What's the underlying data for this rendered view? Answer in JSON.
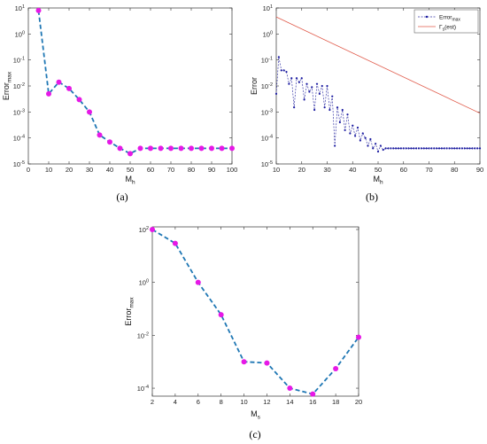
{
  "chart_data": [
    {
      "id": "a",
      "type": "line",
      "caption": "(a)",
      "xlabel_main": "M",
      "xlabel_sub": "h",
      "ylabel_main": "Error",
      "ylabel_sub": "max",
      "xlim": [
        0,
        100
      ],
      "xticks": [
        0,
        10,
        20,
        30,
        40,
        50,
        60,
        70,
        80,
        90,
        100
      ],
      "yscale": "log",
      "ylim_exp": [
        -5,
        1
      ],
      "ytick_exps": [
        -5,
        -4,
        -3,
        -2,
        -1,
        0,
        1
      ],
      "grid": false,
      "series": [
        {
          "line_color": "#1f77b4",
          "line_style": "dashed",
          "marker_color": "#e619e6",
          "x": [
            5,
            10,
            15,
            20,
            25,
            30,
            35,
            40,
            45,
            50,
            55,
            60,
            65,
            70,
            75,
            80,
            85,
            90,
            95,
            100
          ],
          "y": [
            8,
            0.005,
            0.014,
            0.008,
            0.003,
            0.001,
            0.00013,
            7e-05,
            4e-05,
            2.5e-05,
            4e-05,
            4e-05,
            4e-05,
            4e-05,
            4e-05,
            4e-05,
            4e-05,
            4e-05,
            4e-05,
            4e-05
          ]
        }
      ]
    },
    {
      "id": "b",
      "type": "line",
      "caption": "(b)",
      "xlabel_main": "M",
      "xlabel_sub": "h",
      "ylabel_main": "Error",
      "ylabel_sub": "",
      "xlim": [
        10,
        90
      ],
      "xticks": [
        10,
        20,
        30,
        40,
        50,
        60,
        70,
        80,
        90
      ],
      "yscale": "log",
      "ylim_exp": [
        -5,
        1
      ],
      "ytick_exps": [
        -5,
        -4,
        -3,
        -2,
        -1,
        0,
        1
      ],
      "grid": false,
      "legend_position": "top-right",
      "series": [
        {
          "legend_main": "Error",
          "legend_sub": "max",
          "line_color": "#3a3aa8",
          "line_style": "dashed",
          "marker_color": "#1a1aa0",
          "x": [
            10,
            11,
            12,
            13,
            14,
            15,
            16,
            17,
            18,
            19,
            20,
            21,
            22,
            23,
            24,
            25,
            26,
            27,
            28,
            29,
            30,
            31,
            32,
            33,
            34,
            35,
            36,
            37,
            38,
            39,
            40,
            41,
            42,
            43,
            44,
            45,
            46,
            47,
            48,
            49,
            50,
            51,
            52,
            53,
            54,
            55,
            56,
            57,
            58,
            59,
            60,
            61,
            62,
            63,
            64,
            65,
            66,
            67,
            68,
            69,
            70,
            71,
            72,
            73,
            74,
            75,
            76,
            77,
            78,
            79,
            80,
            81,
            82,
            83,
            84,
            85,
            86,
            87,
            88,
            89,
            90
          ],
          "y": [
            0.005,
            0.13,
            0.04,
            0.04,
            0.035,
            0.012,
            0.02,
            0.0015,
            0.02,
            0.014,
            0.02,
            0.003,
            0.012,
            0.006,
            0.009,
            0.0012,
            0.012,
            0.005,
            0.01,
            0.0015,
            0.01,
            0.0012,
            0.004,
            5e-05,
            0.0015,
            0.0004,
            0.0012,
            0.0002,
            0.0008,
            0.00015,
            0.0003,
            0.00012,
            0.00025,
            8e-05,
            0.00015,
            0.0001,
            5e-05,
            9e-05,
            4e-05,
            6e-05,
            3e-05,
            5e-05,
            3.5e-05,
            4e-05,
            4e-05,
            4e-05,
            4e-05,
            4e-05,
            4e-05,
            4e-05,
            4e-05,
            4e-05,
            4e-05,
            4e-05,
            4e-05,
            4e-05,
            4e-05,
            4e-05,
            4e-05,
            4e-05,
            4e-05,
            4e-05,
            4e-05,
            4e-05,
            4e-05,
            4e-05,
            4e-05,
            4e-05,
            4e-05,
            4e-05,
            4e-05,
            4e-05,
            4e-05,
            4e-05,
            4e-05,
            4e-05,
            4e-05,
            4e-05,
            4e-05,
            4e-05,
            4e-05
          ]
        },
        {
          "legend_main": "Γ",
          "legend_sub": "s",
          "legend_tail": "(est)",
          "line_color": "#e05a4a",
          "line_style": "solid",
          "x": [
            10,
            90
          ],
          "y": [
            4.5,
            0.0009
          ]
        }
      ]
    },
    {
      "id": "c",
      "type": "line",
      "caption": "(c)",
      "xlabel_main": "M",
      "xlabel_sub": "s",
      "ylabel_main": "Error",
      "ylabel_sub": "max",
      "xlim": [
        2,
        20
      ],
      "xticks": [
        2,
        4,
        6,
        8,
        10,
        12,
        14,
        16,
        18,
        20
      ],
      "yscale": "log",
      "ylim_exp": [
        -4.3,
        2.1
      ],
      "ytick_exps": [
        -4,
        -2,
        0,
        2
      ],
      "grid": false,
      "series": [
        {
          "line_color": "#1f77b4",
          "line_style": "dashed",
          "marker_color": "#e619e6",
          "x": [
            2,
            4,
            6,
            8,
            10,
            12,
            14,
            16,
            18,
            20
          ],
          "y": [
            100,
            30,
            1,
            0.06,
            0.001,
            0.0009,
            0.0001,
            6e-05,
            0.00055,
            0.0085
          ]
        }
      ]
    }
  ]
}
